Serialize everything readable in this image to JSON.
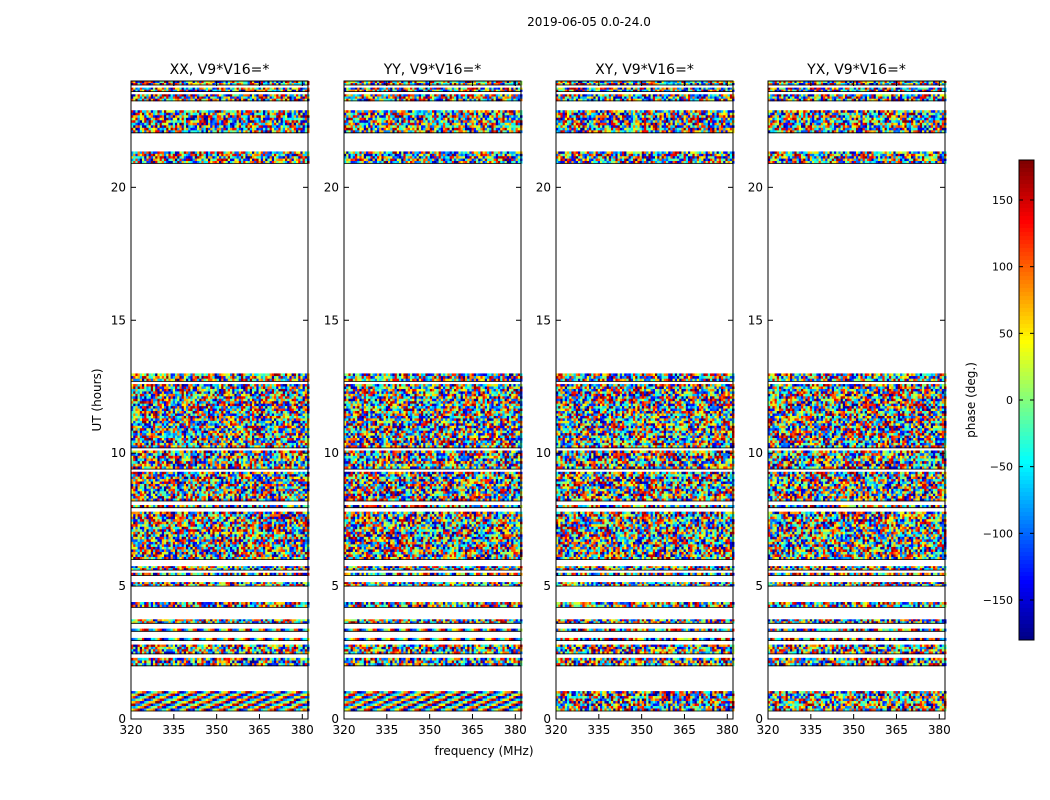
{
  "suptitle": "2019-06-05 0.0-24.0",
  "chart_data": {
    "type": "heatmap",
    "title": "2019-06-05 0.0-24.0",
    "xlabel": "frequency (MHz)",
    "ylabel": "UT (hours)",
    "xlim": [
      320,
      382
    ],
    "ylim": [
      0,
      24
    ],
    "xticks": [
      "320",
      "335",
      "350",
      "365",
      "380"
    ],
    "yticks": [
      "0",
      "5",
      "10",
      "15",
      "20"
    ],
    "panels": [
      {
        "title": "XX, V9*V16=*",
        "pol": "XX"
      },
      {
        "title": "YY, V9*V16=*",
        "pol": "YY"
      },
      {
        "title": "XY, V9*V16=*",
        "pol": "XY"
      },
      {
        "title": "YX, V9*V16=*",
        "pol": "YX"
      }
    ],
    "data_bands_hours": [
      [
        0.3,
        1.05
      ],
      [
        2.0,
        2.3
      ],
      [
        2.45,
        2.8
      ],
      [
        2.95,
        3.05
      ],
      [
        3.3,
        3.4
      ],
      [
        3.6,
        3.75
      ],
      [
        4.2,
        4.4
      ],
      [
        5.0,
        5.15
      ],
      [
        5.4,
        5.5
      ],
      [
        5.6,
        5.75
      ],
      [
        6.0,
        7.8
      ],
      [
        7.95,
        8.05
      ],
      [
        8.2,
        9.3
      ],
      [
        9.4,
        10.1
      ],
      [
        10.2,
        12.6
      ],
      [
        12.7,
        13.0
      ],
      [
        20.9,
        21.35
      ],
      [
        22.05,
        22.9
      ],
      [
        23.25,
        23.5
      ],
      [
        23.6,
        23.75
      ],
      [
        23.85,
        24.0
      ]
    ],
    "colorbar": {
      "label": "phase (deg.)",
      "range": [
        -180,
        180
      ],
      "ticks": [
        "150",
        "100",
        "50",
        "0",
        "−50",
        "−100",
        "−150"
      ],
      "tick_values": [
        150,
        100,
        50,
        0,
        -50,
        -100,
        -150
      ],
      "colormap": "jet"
    }
  }
}
